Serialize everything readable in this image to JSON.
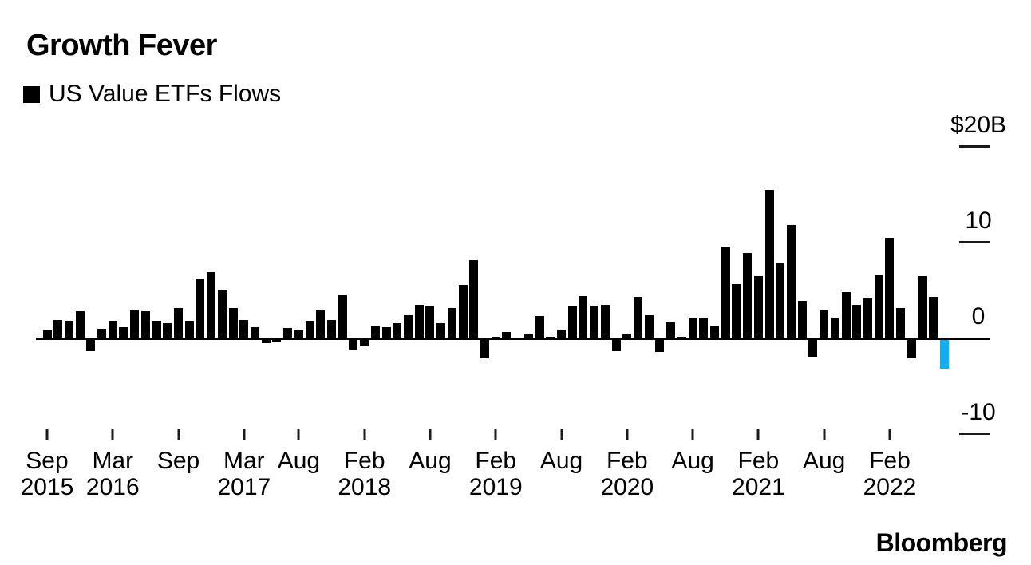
{
  "header": {
    "title": "Growth Fever"
  },
  "legend": {
    "label": "US Value ETFs Flows"
  },
  "branding": {
    "logo": "Bloomberg"
  },
  "colors": {
    "bar": "#000000",
    "highlight": "#14AEEF",
    "axis": "#000000",
    "background": "#FFFFFF"
  },
  "chart_data": {
    "type": "bar",
    "title": "Growth Fever",
    "series_name": "US Value ETFs Flows",
    "unit": "$ billions",
    "grid": false,
    "legend_position": "top-left",
    "ylim": [
      -10,
      20
    ],
    "highlight_index": 82,
    "categories": [
      "Sep 2015",
      "Oct 2015",
      "Nov 2015",
      "Dec 2015",
      "Jan 2016",
      "Feb 2016",
      "Mar 2016",
      "Apr 2016",
      "May 2016",
      "Jun 2016",
      "Jul 2016",
      "Aug 2016",
      "Sep 2016",
      "Oct 2016",
      "Nov 2016",
      "Dec 2016",
      "Jan 2017",
      "Feb 2017",
      "Mar 2017",
      "Apr 2017",
      "May 2017",
      "Jun 2017",
      "Jul 2017",
      "Aug 2017",
      "Sep 2017",
      "Oct 2017",
      "Nov 2017",
      "Dec 2017",
      "Jan 2018",
      "Feb 2018",
      "Mar 2018",
      "Apr 2018",
      "May 2018",
      "Jun 2018",
      "Jul 2018",
      "Aug 2018",
      "Sep 2018",
      "Oct 2018",
      "Nov 2018",
      "Dec 2018",
      "Jan 2019",
      "Feb 2019",
      "Mar 2019",
      "Apr 2019",
      "May 2019",
      "Jun 2019",
      "Jul 2019",
      "Aug 2019",
      "Sep 2019",
      "Oct 2019",
      "Nov 2019",
      "Dec 2019",
      "Jan 2020",
      "Feb 2020",
      "Mar 2020",
      "Apr 2020",
      "May 2020",
      "Jun 2020",
      "Jul 2020",
      "Aug 2020",
      "Sep 2020",
      "Oct 2020",
      "Nov 2020",
      "Dec 2020",
      "Jan 2021",
      "Feb 2021",
      "Mar 2021",
      "Apr 2021",
      "May 2021",
      "Jun 2021",
      "Jul 2021",
      "Aug 2021",
      "Sep 2021",
      "Oct 2021",
      "Nov 2021",
      "Dec 2021",
      "Jan 2022",
      "Feb 2022",
      "Mar 2022",
      "Apr 2022",
      "May 2022",
      "Jun 2022",
      "Jul 2022"
    ],
    "values": [
      0.8,
      1.9,
      1.8,
      2.8,
      -1.3,
      1.0,
      1.8,
      1.2,
      3.0,
      2.8,
      1.8,
      1.6,
      3.2,
      1.8,
      6.2,
      6.9,
      5.0,
      3.2,
      1.9,
      1.2,
      -0.5,
      -0.4,
      1.1,
      0.8,
      1.8,
      3.0,
      1.9,
      4.5,
      -1.2,
      -0.8,
      1.3,
      1.2,
      1.6,
      2.4,
      3.5,
      3.4,
      1.6,
      3.2,
      5.6,
      8.2,
      -2.1,
      0.15,
      0.7,
      0.1,
      0.5,
      2.3,
      0.15,
      0.9,
      3.3,
      4.4,
      3.4,
      3.5,
      -1.3,
      0.5,
      4.3,
      2.4,
      -1.4,
      1.7,
      0.2,
      2.2,
      2.2,
      1.3,
      9.5,
      5.7,
      8.9,
      6.5,
      15.5,
      7.9,
      11.8,
      3.9,
      -1.9,
      3.0,
      2.2,
      4.8,
      3.5,
      4.2,
      6.7,
      10.5,
      3.2,
      -2.1,
      6.5,
      4.3,
      -3.2
    ],
    "y_axis": {
      "labels": [
        {
          "text": "$20B",
          "value": 20
        },
        {
          "text": "10",
          "value": 10
        },
        {
          "text": "0",
          "value": 0
        },
        {
          "text": "-10",
          "value": -10
        }
      ]
    },
    "x_axis": {
      "ticks": [
        {
          "index": 0,
          "line1": "Sep",
          "line2": "2015"
        },
        {
          "index": 6,
          "line1": "Mar",
          "line2": "2016"
        },
        {
          "index": 12,
          "line1": "Sep",
          "line2": ""
        },
        {
          "index": 18,
          "line1": "Mar",
          "line2": "2017"
        },
        {
          "index": 23,
          "line1": "Aug",
          "line2": ""
        },
        {
          "index": 29,
          "line1": "Feb",
          "line2": "2018"
        },
        {
          "index": 35,
          "line1": "Aug",
          "line2": ""
        },
        {
          "index": 41,
          "line1": "Feb",
          "line2": "2019"
        },
        {
          "index": 47,
          "line1": "Aug",
          "line2": ""
        },
        {
          "index": 53,
          "line1": "Feb",
          "line2": "2020"
        },
        {
          "index": 59,
          "line1": "Aug",
          "line2": ""
        },
        {
          "index": 65,
          "line1": "Feb",
          "line2": "2021"
        },
        {
          "index": 71,
          "line1": "Aug",
          "line2": ""
        },
        {
          "index": 77,
          "line1": "Feb",
          "line2": "2022"
        }
      ]
    }
  }
}
